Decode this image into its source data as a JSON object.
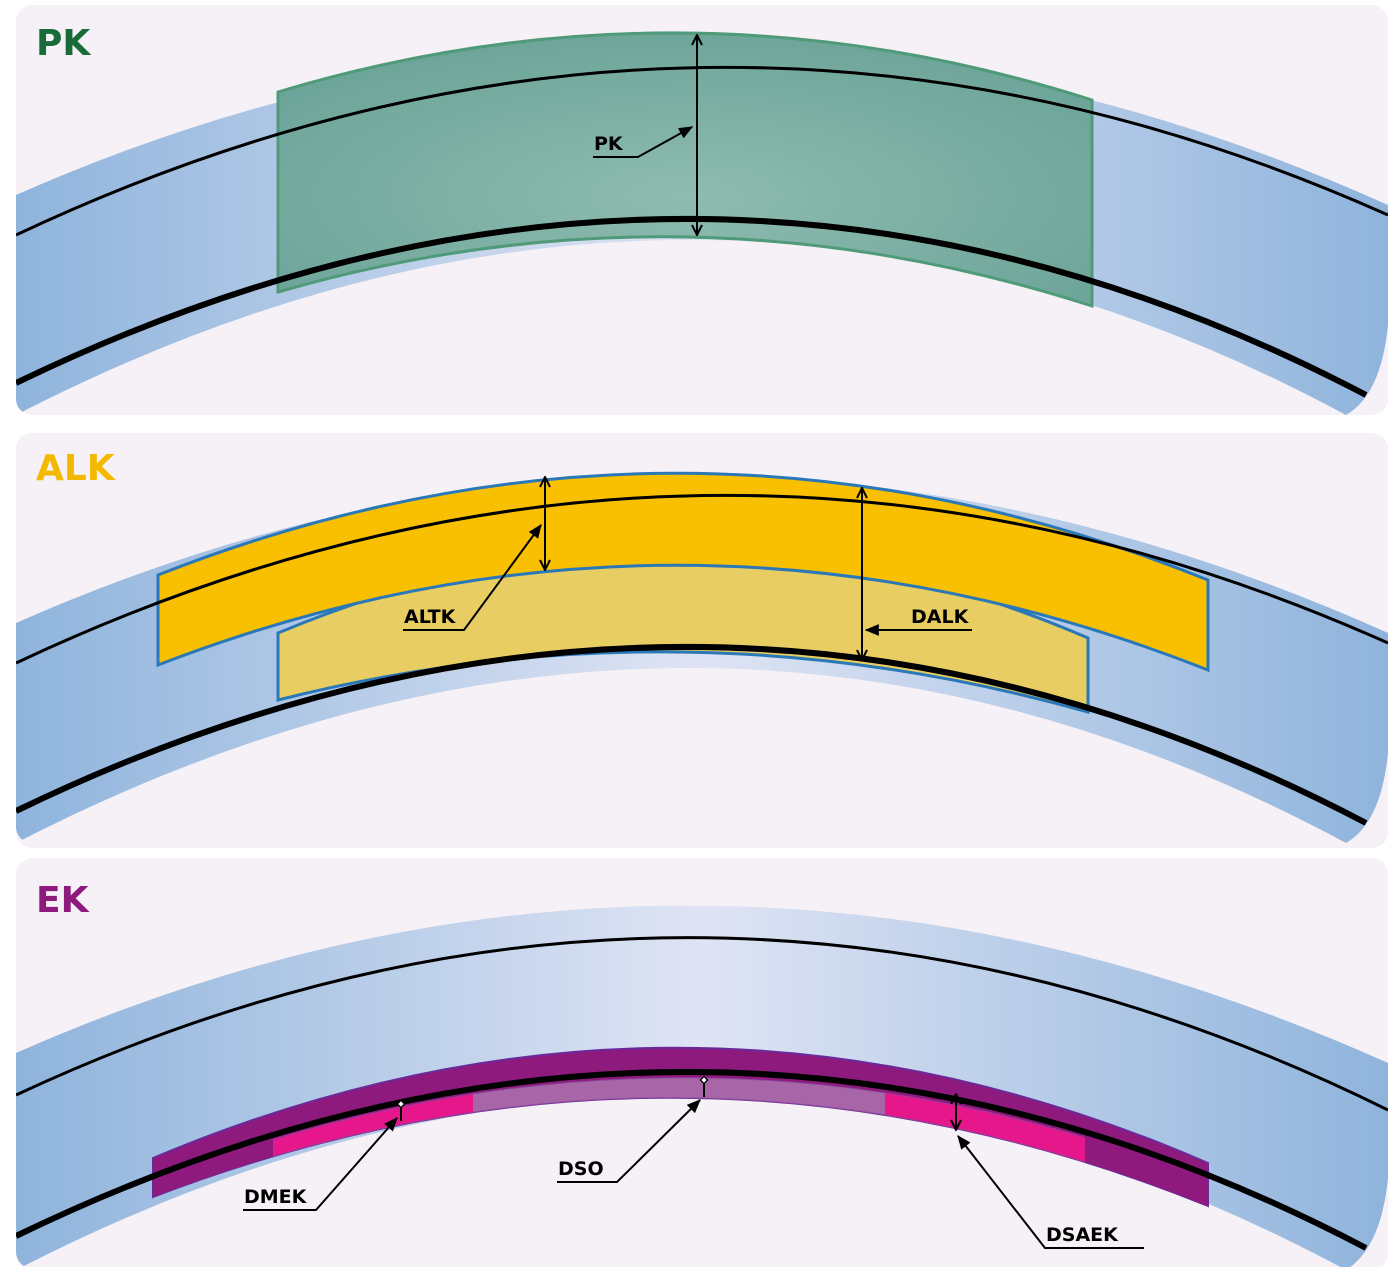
{
  "panels": [
    {
      "title": "PK",
      "labels": [
        "PK"
      ]
    },
    {
      "title": "ALK",
      "labels": [
        "ALTK",
        "DALK"
      ]
    },
    {
      "title": "EK",
      "labels": [
        "DMEK",
        "DSO",
        "DSAEK"
      ]
    }
  ]
}
